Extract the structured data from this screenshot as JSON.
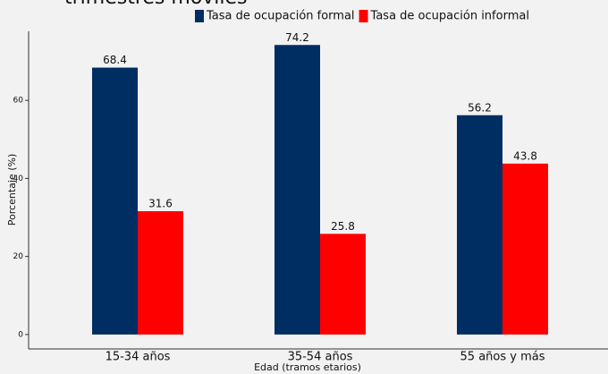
{
  "chart_data": {
    "type": "bar",
    "title": "trimestres móviles",
    "xlabel": "Edad (tramos etarios)",
    "ylabel": "Porcentaje (%)",
    "categories": [
      "15-34 años",
      "35-54 años",
      "55 años y más"
    ],
    "series": [
      {
        "name": "Tasa de ocupación formal",
        "color": "#002d62",
        "values": [
          68.4,
          74.2,
          56.2
        ]
      },
      {
        "name": "Tasa de ocupación informal",
        "color": "#ff0000",
        "values": [
          31.6,
          25.8,
          43.8
        ]
      }
    ],
    "ylim": [
      -3.7,
      77.7
    ],
    "yticks": [
      0,
      20,
      40,
      60
    ]
  }
}
